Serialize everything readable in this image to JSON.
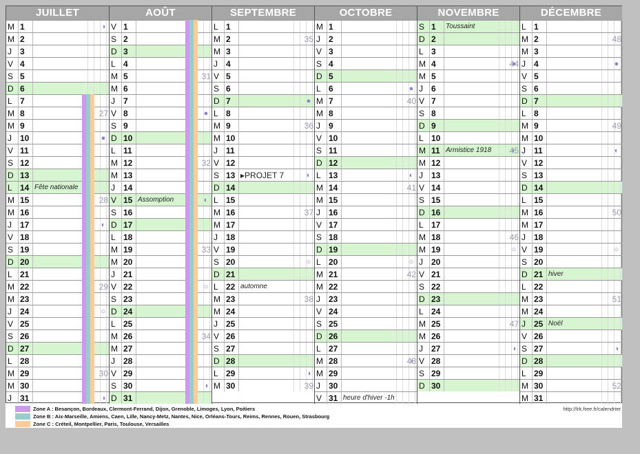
{
  "colors": {
    "sunday": "#d6f5d0",
    "zoneA": "#cc99ee",
    "zoneB": "#99cccc",
    "zoneC": "#ffcc99",
    "header": "#a6a6a6",
    "moon": "#8b83c4"
  },
  "months": [
    {
      "name": "JUILLET",
      "start_wd": 1,
      "days": 31,
      "notes": {
        "14": "Fête nationale"
      },
      "weeks": {
        "8": "27",
        "15": "28",
        "22": "29",
        "29": "30"
      },
      "moons": {
        "1": "◑",
        "10": "●",
        "17": "◐",
        "24": "○",
        "31": "◑"
      },
      "holidays": [
        "14"
      ],
      "stripes": {
        "from": 7,
        "to": 31
      }
    },
    {
      "name": "AOÛT",
      "start_wd": 4,
      "days": 31,
      "notes": {
        "15": "Assomption"
      },
      "weeks": {
        "5": "31",
        "12": "32",
        "19": "33",
        "26": "34"
      },
      "moons": {
        "8": "●",
        "15": "◐",
        "22": "○",
        "30": "◑"
      },
      "holidays": [
        "15"
      ],
      "stripes": {
        "from": 1,
        "to": 31
      }
    },
    {
      "name": "SEPTEMBRE",
      "start_wd": 0,
      "days": 30,
      "notes": {
        "13": "PROJET 7",
        "22": "automne"
      },
      "weeks": {
        "2": "35",
        "9": "36",
        "16": "37",
        "23": "38",
        "30": "39"
      },
      "moons": {
        "7": "●",
        "13": "◐",
        "20": "○",
        "29": "◑"
      },
      "holidays": [],
      "stripes": null
    },
    {
      "name": "OCTOBRE",
      "start_wd": 2,
      "days": 31,
      "notes": {
        "31": "heure d'hiver -1h"
      },
      "weeks": {
        "7": "40",
        "14": "41",
        "21": "42",
        "28": "43"
      },
      "moons": {
        "6": "●",
        "13": "◐",
        "20": "○",
        "28": "◑"
      },
      "holidays": [],
      "stripes": null
    },
    {
      "name": "NOVEMBRE",
      "start_wd": 5,
      "days": 30,
      "notes": {
        "1": "Toussaint",
        "11": "Armistice 1918"
      },
      "weeks": {
        "4": "44",
        "11": "45",
        "18": "46",
        "25": "47"
      },
      "moons": {
        "4": "●",
        "11": "◐",
        "19": "○",
        "27": "◑"
      },
      "holidays": [
        "1",
        "11"
      ],
      "stripes": null
    },
    {
      "name": "DÉCEMBRE",
      "start_wd": 0,
      "days": 31,
      "notes": {
        "21": "hiver",
        "25": "Noël"
      },
      "weeks": {
        "2": "48",
        "9": "49",
        "16": "50",
        "23": "51",
        "30": "52"
      },
      "moons": {
        "4": "●",
        "11": "◐",
        "19": "○",
        "27": "◑"
      },
      "holidays": [
        "25"
      ],
      "stripes": null
    }
  ],
  "weekday_letters": [
    "L",
    "M",
    "M",
    "J",
    "V",
    "S",
    "D"
  ],
  "legend": {
    "zoneA": "Zone A : Besançon, Bordeaux, Clermont-Ferrand, Dijon, Grenoble, Limoges, Lyon, Poitiers",
    "zoneB": "Zone B : Aix-Marseille, Amiens, Caen, Lille, Nancy-Metz, Nantes, Nice, Orléans-Tours, Reims, Rennes, Rouen, Strasbourg",
    "zoneC": "Zone C : Créteil, Montpellier, Paris, Toulouse, Versailles",
    "url": "http://lrk.free.fr/calendrier"
  }
}
